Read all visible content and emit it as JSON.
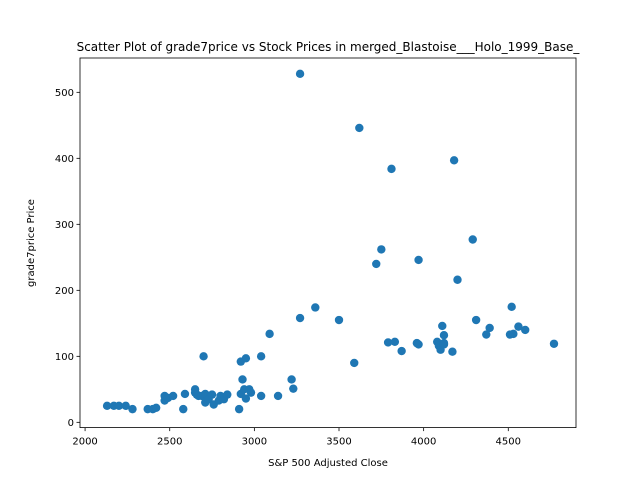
{
  "chart_data": {
    "type": "scatter",
    "title": "Scatter Plot of grade7price vs Stock Prices in merged_Blastoise___Holo_1999_Base_",
    "xlabel": "S&P 500 Adjusted Close",
    "ylabel": "grade7price Price",
    "xlim": [
      1970,
      4900
    ],
    "ylim": [
      -8,
      552
    ],
    "xticks": [
      2000,
      2500,
      3000,
      3500,
      4000,
      4500
    ],
    "yticks": [
      0,
      100,
      200,
      300,
      400,
      500
    ],
    "marker_color": "#1f77b4",
    "grid": false,
    "series": [
      {
        "x": [
          2130,
          2170,
          2200,
          2240,
          2280,
          2370,
          2400,
          2420,
          2470,
          2470,
          2490,
          2520,
          2580,
          2590,
          2650,
          2650,
          2660,
          2670,
          2690,
          2700,
          2710,
          2710,
          2730,
          2750,
          2760,
          2790,
          2800,
          2820,
          2840,
          2910,
          2920,
          2920,
          2930,
          2940,
          2950,
          2950,
          2970,
          2980,
          3040,
          3040,
          3090,
          3140,
          3220,
          3230,
          3270,
          3270,
          3360,
          3500,
          3590,
          3620,
          3720,
          3750,
          3790,
          3810,
          3830,
          3870,
          3960,
          3970,
          3970,
          4080,
          4090,
          4100,
          4110,
          4120,
          4120,
          4120,
          4170,
          4180,
          4200,
          4290,
          4310,
          4370,
          4390,
          4510,
          4520,
          4530,
          4560,
          4600,
          4770
        ],
        "y": [
          25,
          25,
          25,
          25,
          20,
          20,
          20,
          22,
          33,
          40,
          37,
          40,
          20,
          43,
          45,
          50,
          42,
          40,
          40,
          100,
          30,
          43,
          35,
          42,
          27,
          33,
          40,
          35,
          42,
          20,
          92,
          43,
          65,
          50,
          36,
          97,
          50,
          45,
          40,
          100,
          134,
          40,
          65,
          51,
          528,
          158,
          174,
          155,
          90,
          446,
          240,
          262,
          121,
          384,
          122,
          108,
          120,
          246,
          118,
          122,
          116,
          110,
          146,
          120,
          132,
          118,
          107,
          397,
          216,
          277,
          155,
          133,
          143,
          133,
          175,
          134,
          145,
          140,
          119
        ]
      }
    ]
  }
}
